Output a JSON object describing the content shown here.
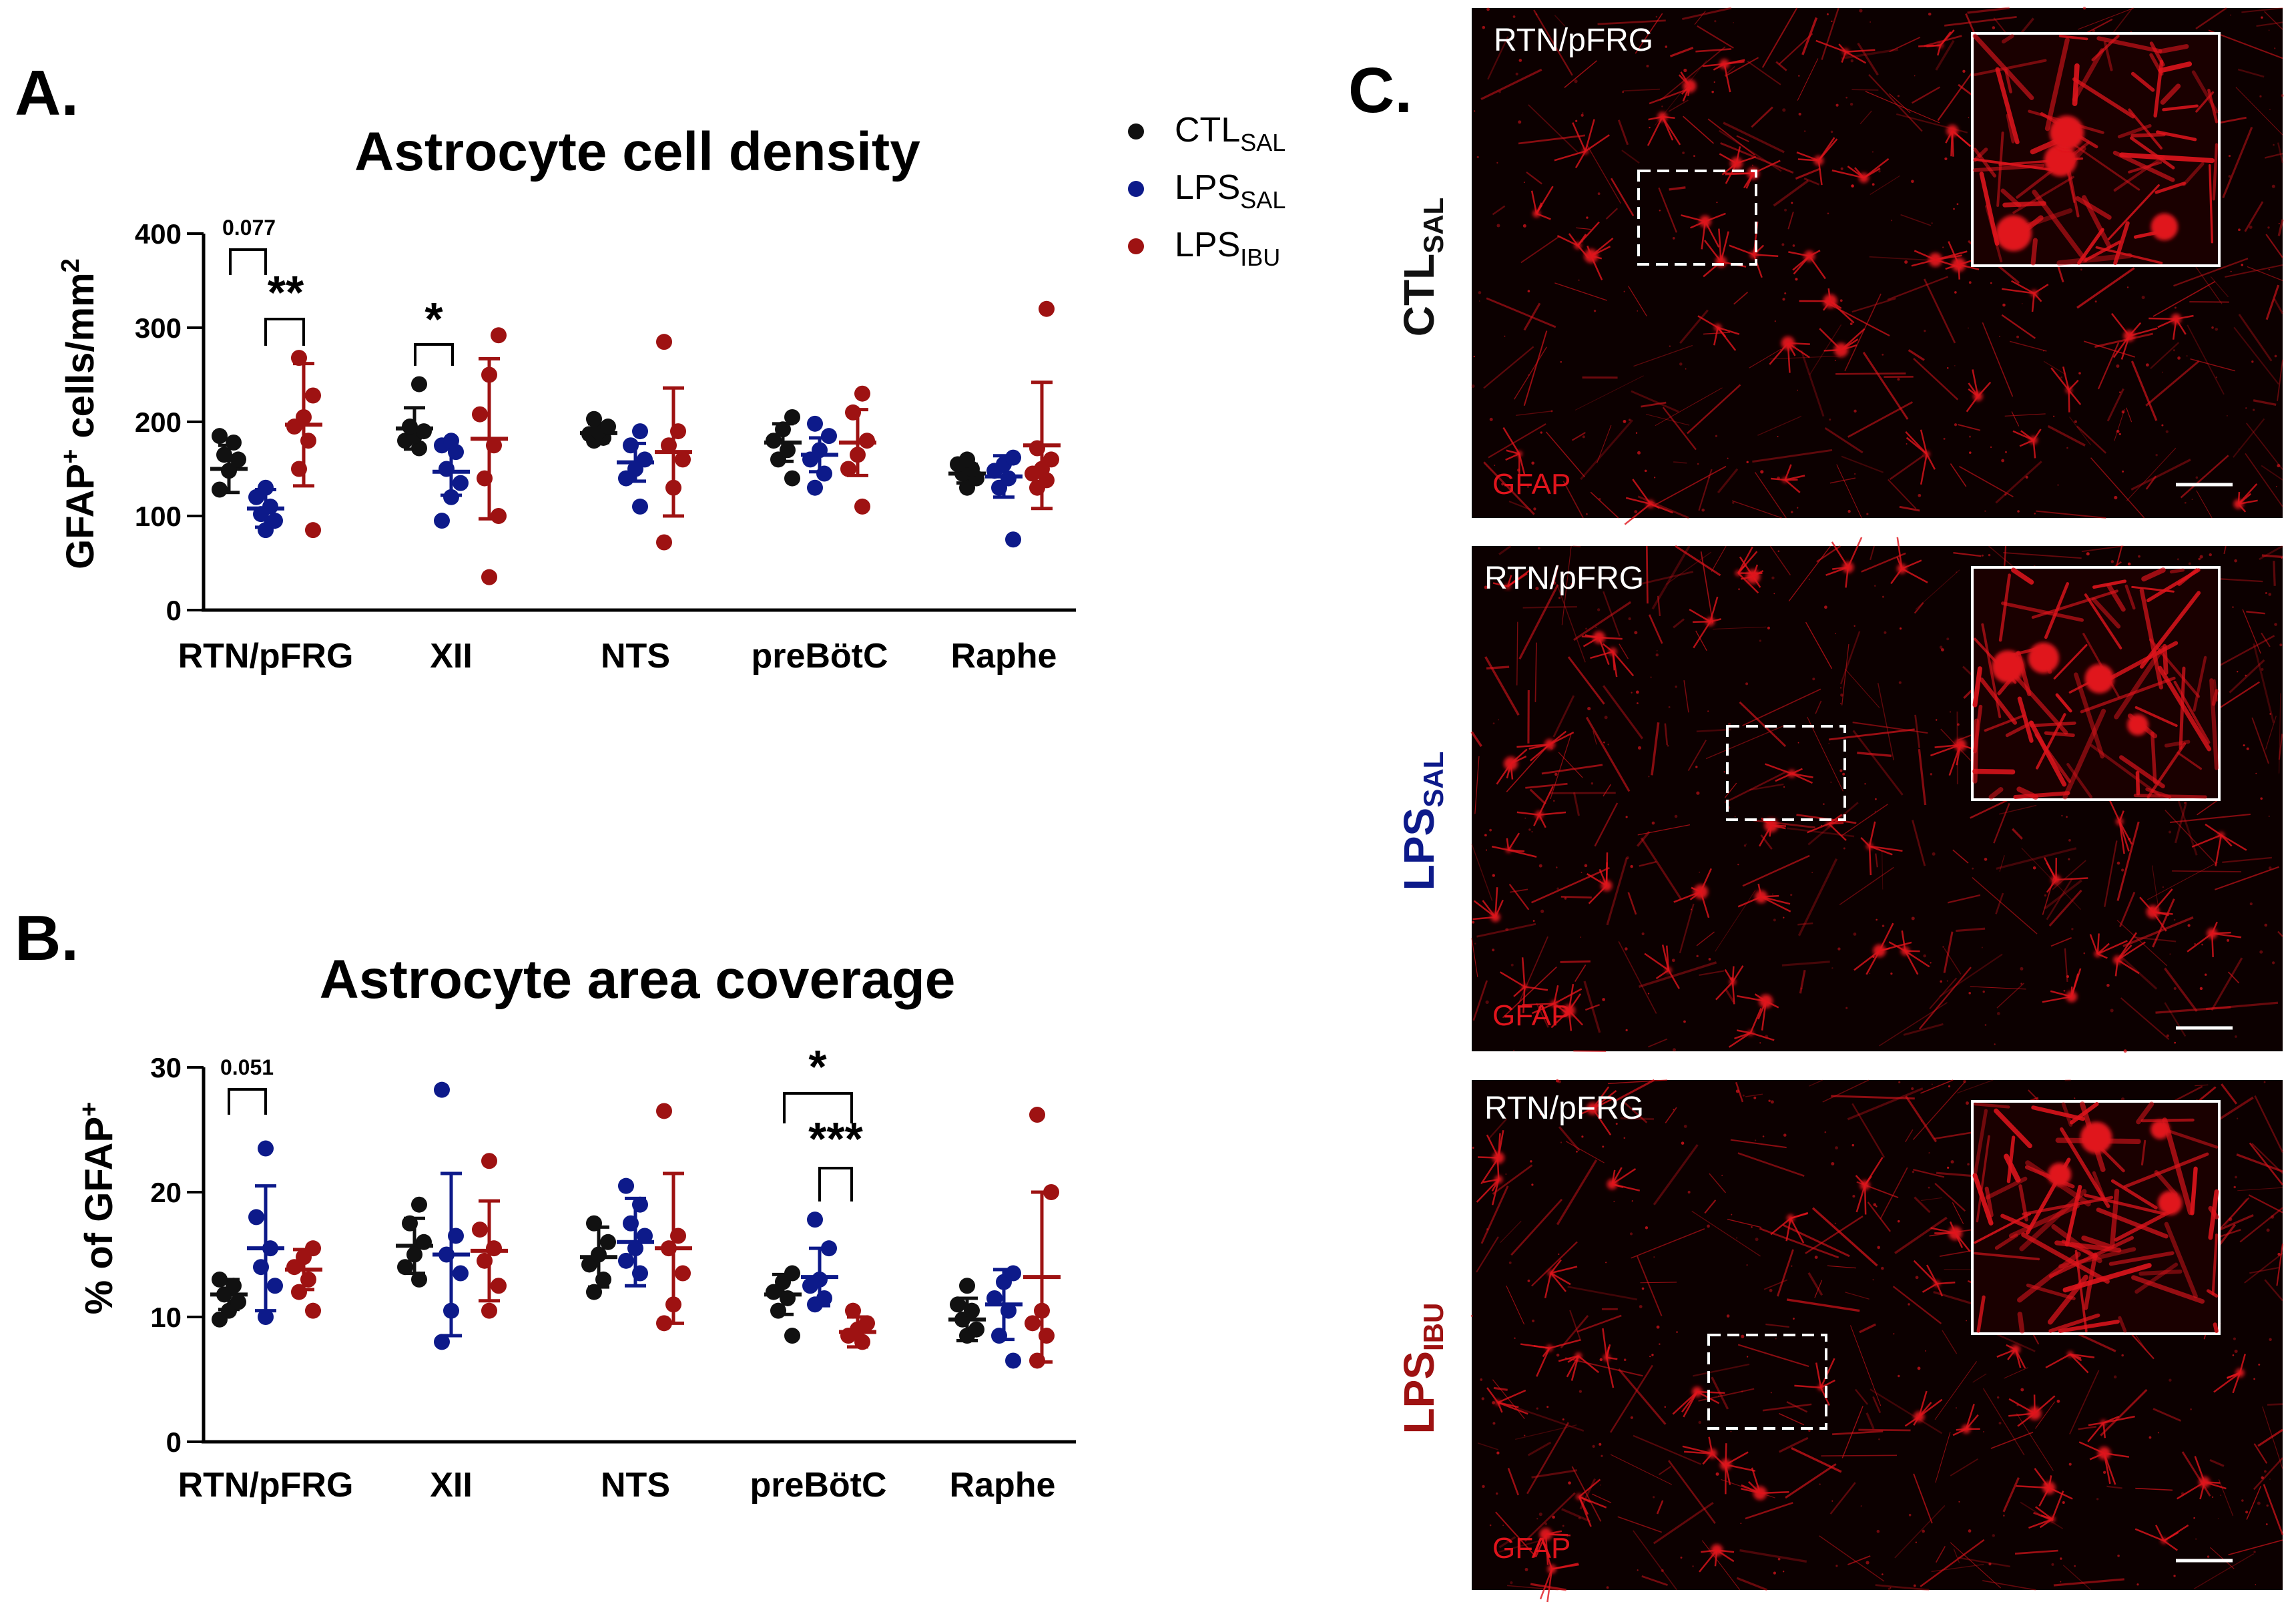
{
  "colors": {
    "ctl": "#111111",
    "lps_sal": "#0d1a8a",
    "lps_ibu": "#9e1212",
    "stain": "#e0141c"
  },
  "panel_labels": {
    "a": "A.",
    "b": "B.",
    "c": "C."
  },
  "legend": [
    {
      "main": "CTL",
      "sub": "SAL",
      "color": "#111111"
    },
    {
      "main": "LPS",
      "sub": "SAL",
      "color": "#0d1a8a"
    },
    {
      "main": "LPS",
      "sub": "IBU",
      "color": "#9e1212"
    }
  ],
  "chart_data": [
    {
      "type": "scatter",
      "title": "Astrocyte cell density",
      "ylabel_main": "GFAP",
      "ylabel_sup": "+",
      "ylabel_rest": " cells/mm",
      "ylabel_sup2": "2",
      "ylim": [
        0,
        400
      ],
      "yticks": [
        "0",
        "100",
        "200",
        "300",
        "400"
      ],
      "categories": [
        "RTN/pFRG",
        "XII",
        "NTS",
        "preBötC",
        "Raphe"
      ],
      "series": [
        {
          "name": "CTL SAL",
          "color": "#111111",
          "points": [
            [
              128,
              148,
              160,
              165,
              178,
              185
            ],
            [
              172,
              180,
              185,
              190,
              195,
              240
            ],
            [
              180,
              183,
              187,
              190,
              195,
              203
            ],
            [
              140,
              160,
              170,
              180,
              192,
              205
            ],
            [
              130,
              140,
              145,
              150,
              155,
              160
            ]
          ],
          "mean": [
            150,
            193,
            188,
            178,
            145
          ],
          "sd": [
            25,
            22,
            10,
            20,
            10
          ]
        },
        {
          "name": "LPS SAL",
          "color": "#0d1a8a",
          "points": [
            [
              85,
              95,
              102,
              110,
              120,
              130
            ],
            [
              95,
              120,
              135,
              150,
              168,
              175,
              180
            ],
            [
              110,
              140,
              150,
              160,
              175,
              190
            ],
            [
              130,
              145,
              160,
              170,
              185,
              198
            ],
            [
              75,
              130,
              140,
              148,
              155,
              162
            ]
          ],
          "mean": [
            108,
            147,
            157,
            165,
            142
          ],
          "sd": [
            20,
            25,
            20,
            18,
            22
          ]
        },
        {
          "name": "LPS IBU",
          "color": "#9e1212",
          "points": [
            [
              85,
              150,
              180,
              195,
              205,
              228,
              268
            ],
            [
              35,
              100,
              140,
              175,
              208,
              250,
              292
            ],
            [
              72,
              130,
              160,
              175,
              190,
              285
            ],
            [
              110,
              150,
              165,
              180,
              210,
              230
            ],
            [
              130,
              138,
              145,
              150,
              160,
              172,
              320
            ]
          ],
          "mean": [
            197,
            182,
            168,
            178,
            175
          ],
          "sd": [
            65,
            85,
            68,
            35,
            67
          ]
        }
      ],
      "significance": [
        {
          "label": "0.077",
          "between": [
            0,
            1
          ],
          "group": 0
        },
        {
          "label": "**",
          "between": [
            1,
            2
          ],
          "group": 0
        },
        {
          "label": "*",
          "between": [
            0,
            1
          ],
          "group": 1
        }
      ]
    },
    {
      "type": "scatter",
      "title": "Astrocyte area coverage",
      "ylabel_main": "% of GFAP",
      "ylabel_sup": "+",
      "ylim": [
        0,
        30
      ],
      "yticks": [
        "0",
        "10",
        "20",
        "30"
      ],
      "categories": [
        "RTN/pFRG",
        "XII",
        "NTS",
        "preBötC",
        "Raphe"
      ],
      "series": [
        {
          "name": "CTL SAL",
          "color": "#111111",
          "points": [
            [
              9.8,
              10.5,
              11.2,
              11.8,
              12.5,
              13.0
            ],
            [
              13.0,
              14.0,
              15.0,
              16.0,
              17.5,
              19.0
            ],
            [
              12.0,
              13.0,
              14.2,
              15.0,
              16.0,
              17.5
            ],
            [
              8.5,
              10.5,
              11.5,
              12.0,
              12.8,
              13.5
            ],
            [
              8.5,
              9.0,
              9.8,
              10.5,
              11.0,
              12.5
            ]
          ],
          "mean": [
            11.8,
            15.7,
            14.8,
            11.8,
            9.8
          ],
          "sd": [
            1.2,
            2.2,
            2.4,
            1.6,
            1.7
          ]
        },
        {
          "name": "LPS SAL",
          "color": "#0d1a8a",
          "points": [
            [
              10.0,
              12.5,
              14.0,
              15.5,
              18.0,
              23.5
            ],
            [
              8.0,
              10.5,
              13.5,
              15.0,
              16.5,
              28.2
            ],
            [
              13.5,
              14.5,
              15.5,
              16.5,
              17.5,
              19.0,
              20.5
            ],
            [
              11.0,
              11.5,
              12.5,
              13.0,
              15.5,
              17.8
            ],
            [
              6.5,
              8.5,
              10.5,
              11.5,
              12.8,
              13.5
            ]
          ],
          "mean": [
            15.5,
            15.0,
            16.0,
            13.2,
            11.0
          ],
          "sd": [
            5.0,
            6.5,
            3.5,
            2.3,
            2.8
          ]
        },
        {
          "name": "LPS IBU",
          "color": "#9e1212",
          "points": [
            [
              10.5,
              12.0,
              13.0,
              14.0,
              14.8,
              15.5
            ],
            [
              10.5,
              12.5,
              14.5,
              15.5,
              17.0,
              22.5
            ],
            [
              9.5,
              11.0,
              13.5,
              15.5,
              16.5,
              26.5
            ],
            [
              8.0,
              8.5,
              9.0,
              9.5,
              10.5
            ],
            [
              6.5,
              8.5,
              9.5,
              10.5,
              20.0,
              26.2
            ]
          ],
          "mean": [
            13.8,
            15.3,
            15.5,
            8.8,
            13.2
          ],
          "sd": [
            1.6,
            4.0,
            6.0,
            1.2,
            6.8
          ]
        }
      ],
      "significance": [
        {
          "label": "0.051",
          "between": [
            0,
            1
          ],
          "group": 0
        },
        {
          "label": "*",
          "between": [
            0,
            2
          ],
          "group": 3
        },
        {
          "label": "***",
          "between": [
            1,
            2
          ],
          "group": 3
        }
      ]
    }
  ],
  "micrographs": [
    {
      "region": "RTN/pFRG",
      "stain": "GFAP",
      "row_main": "CTL",
      "row_sub": "SAL",
      "row_color": "#111111"
    },
    {
      "region": "RTN/pFRG",
      "stain": "GFAP",
      "row_main": "LPS",
      "row_sub": "SAL",
      "row_color": "#0d1a8a"
    },
    {
      "region": "RTN/pFRG",
      "stain": "GFAP",
      "row_main": "LPS",
      "row_sub": "IBU",
      "row_color": "#9e1212"
    }
  ]
}
